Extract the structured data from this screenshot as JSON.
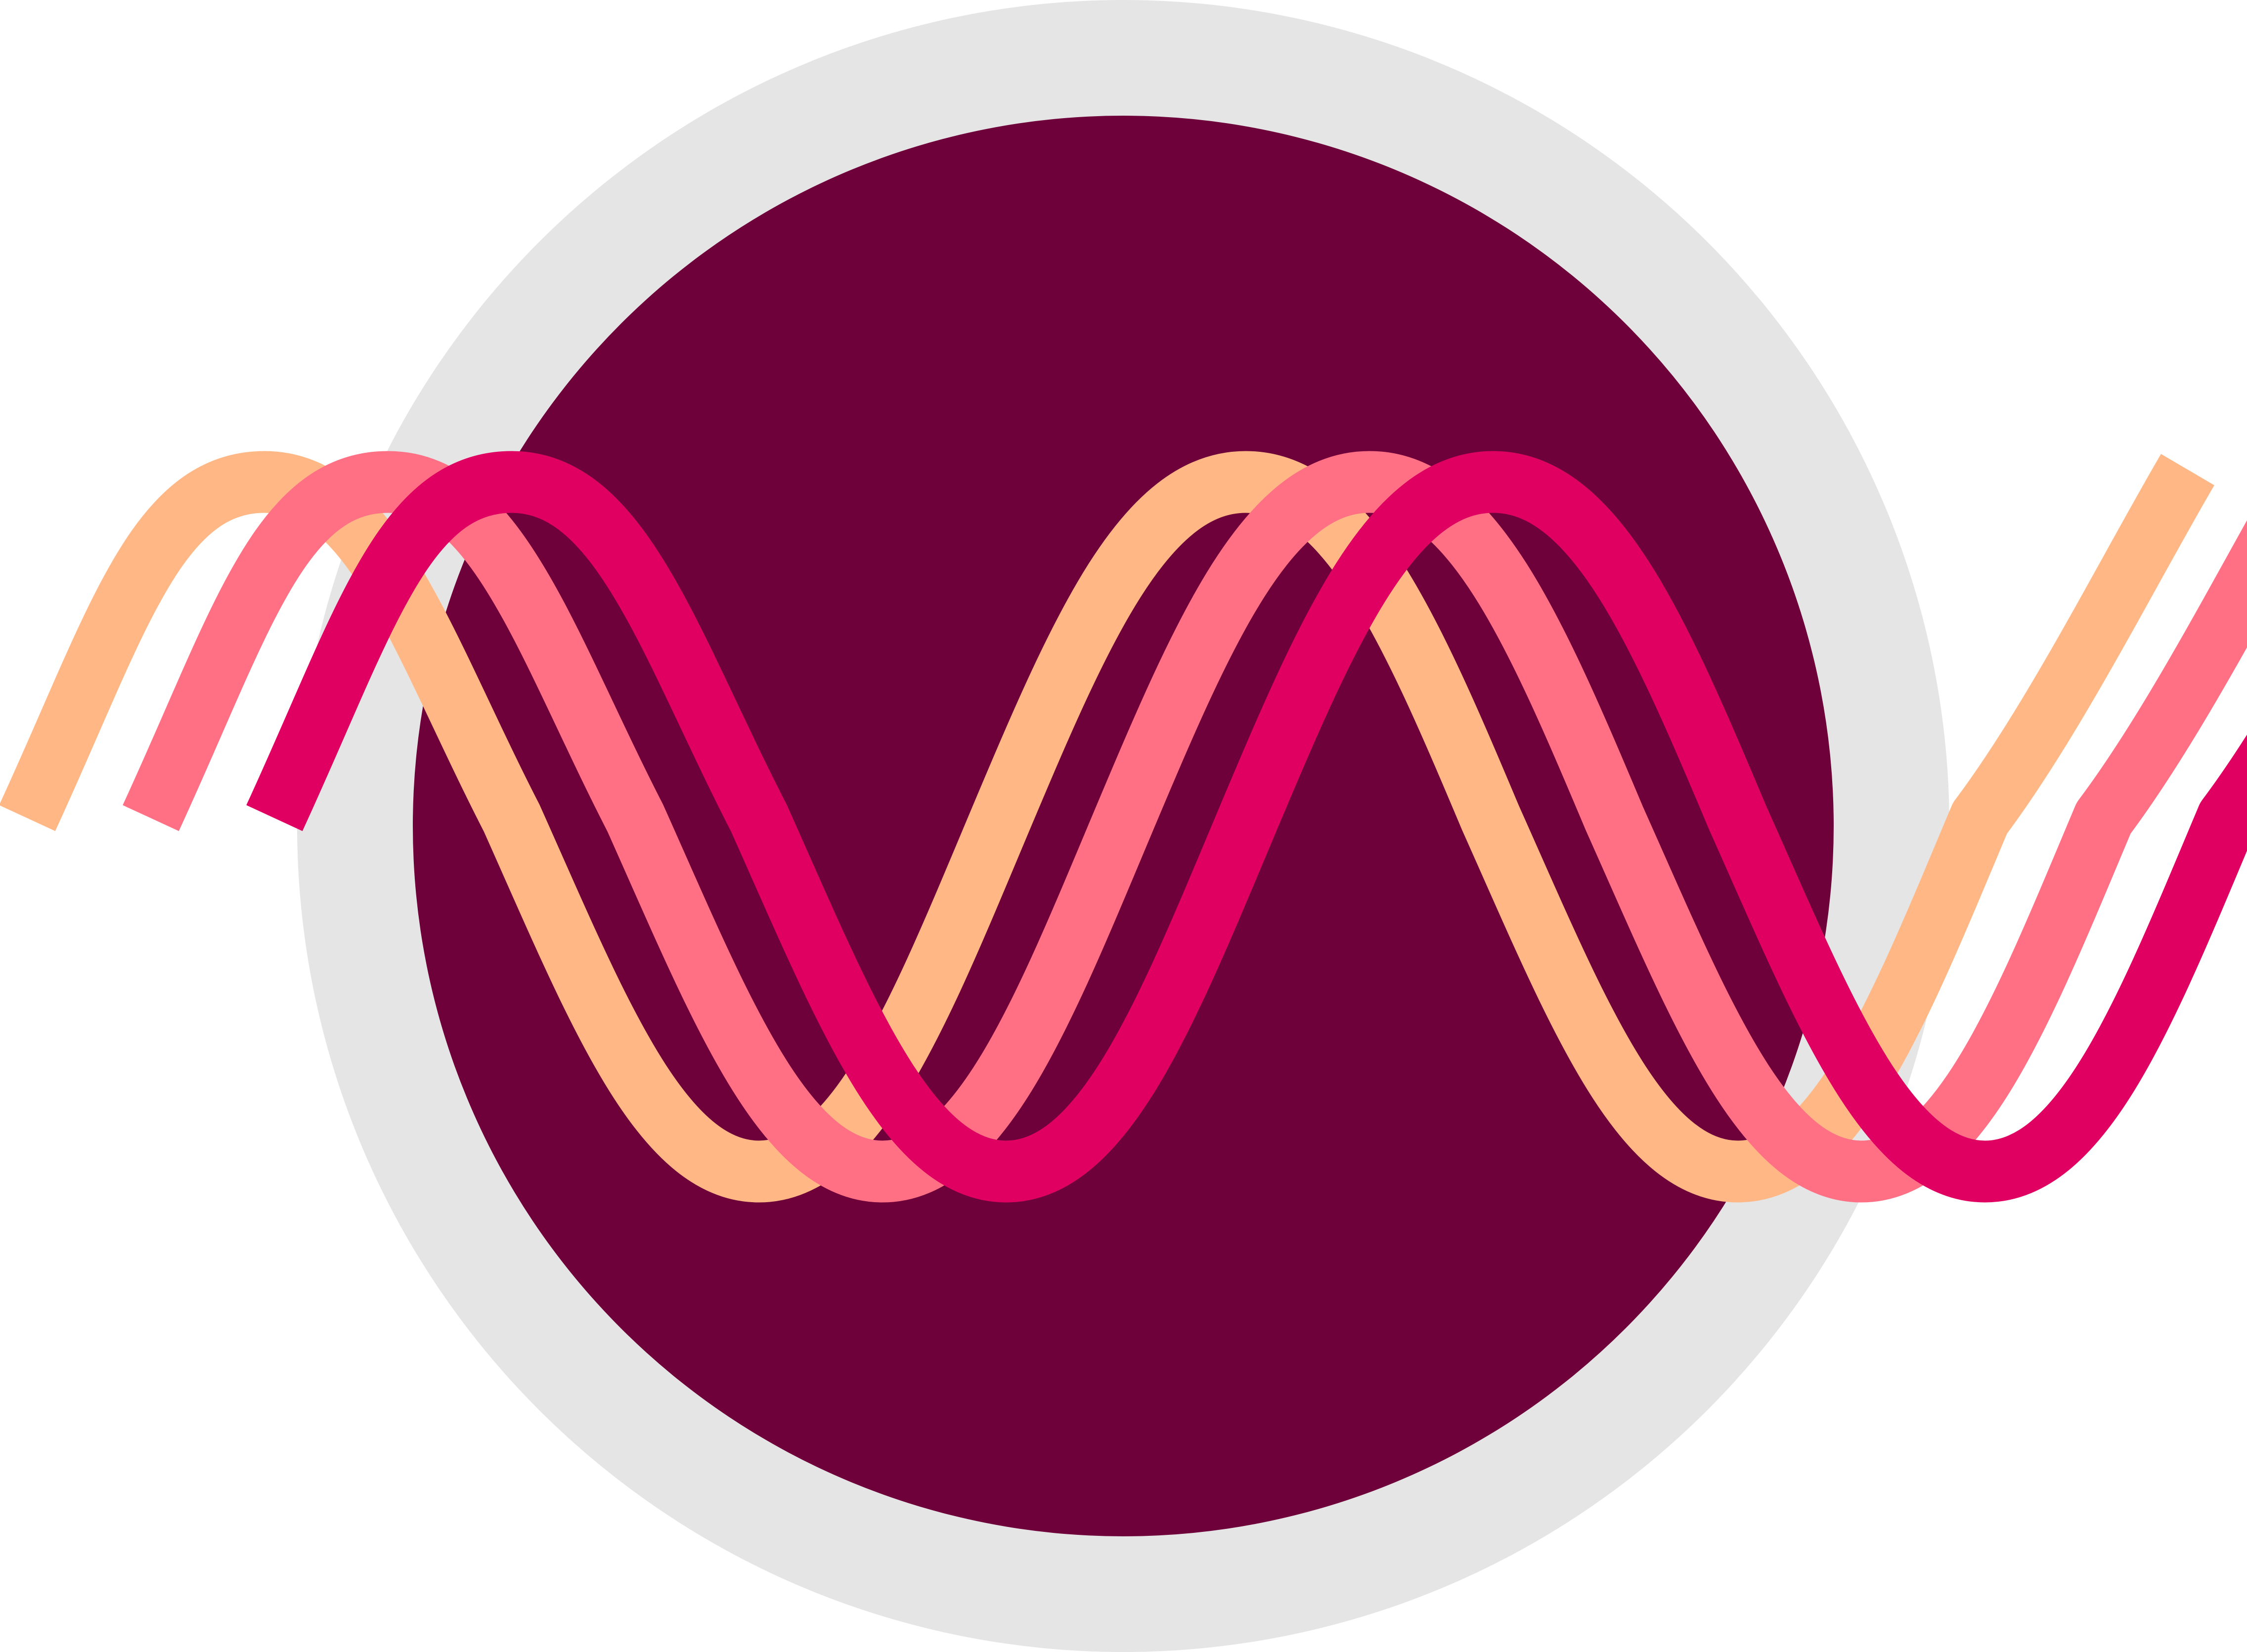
{
  "logo": {
    "name": "wave-emblem",
    "colors": {
      "outer_ring": "#e5e5e5",
      "inner_disc": "#6e003a",
      "wave_back": "#ffb885",
      "wave_middle": "#ff7085",
      "wave_front": "#e00061"
    },
    "waves": [
      {
        "name": "wave-back",
        "color_key": "wave_back"
      },
      {
        "name": "wave-middle",
        "color_key": "wave_middle"
      },
      {
        "name": "wave-front",
        "color_key": "wave_front"
      }
    ]
  }
}
